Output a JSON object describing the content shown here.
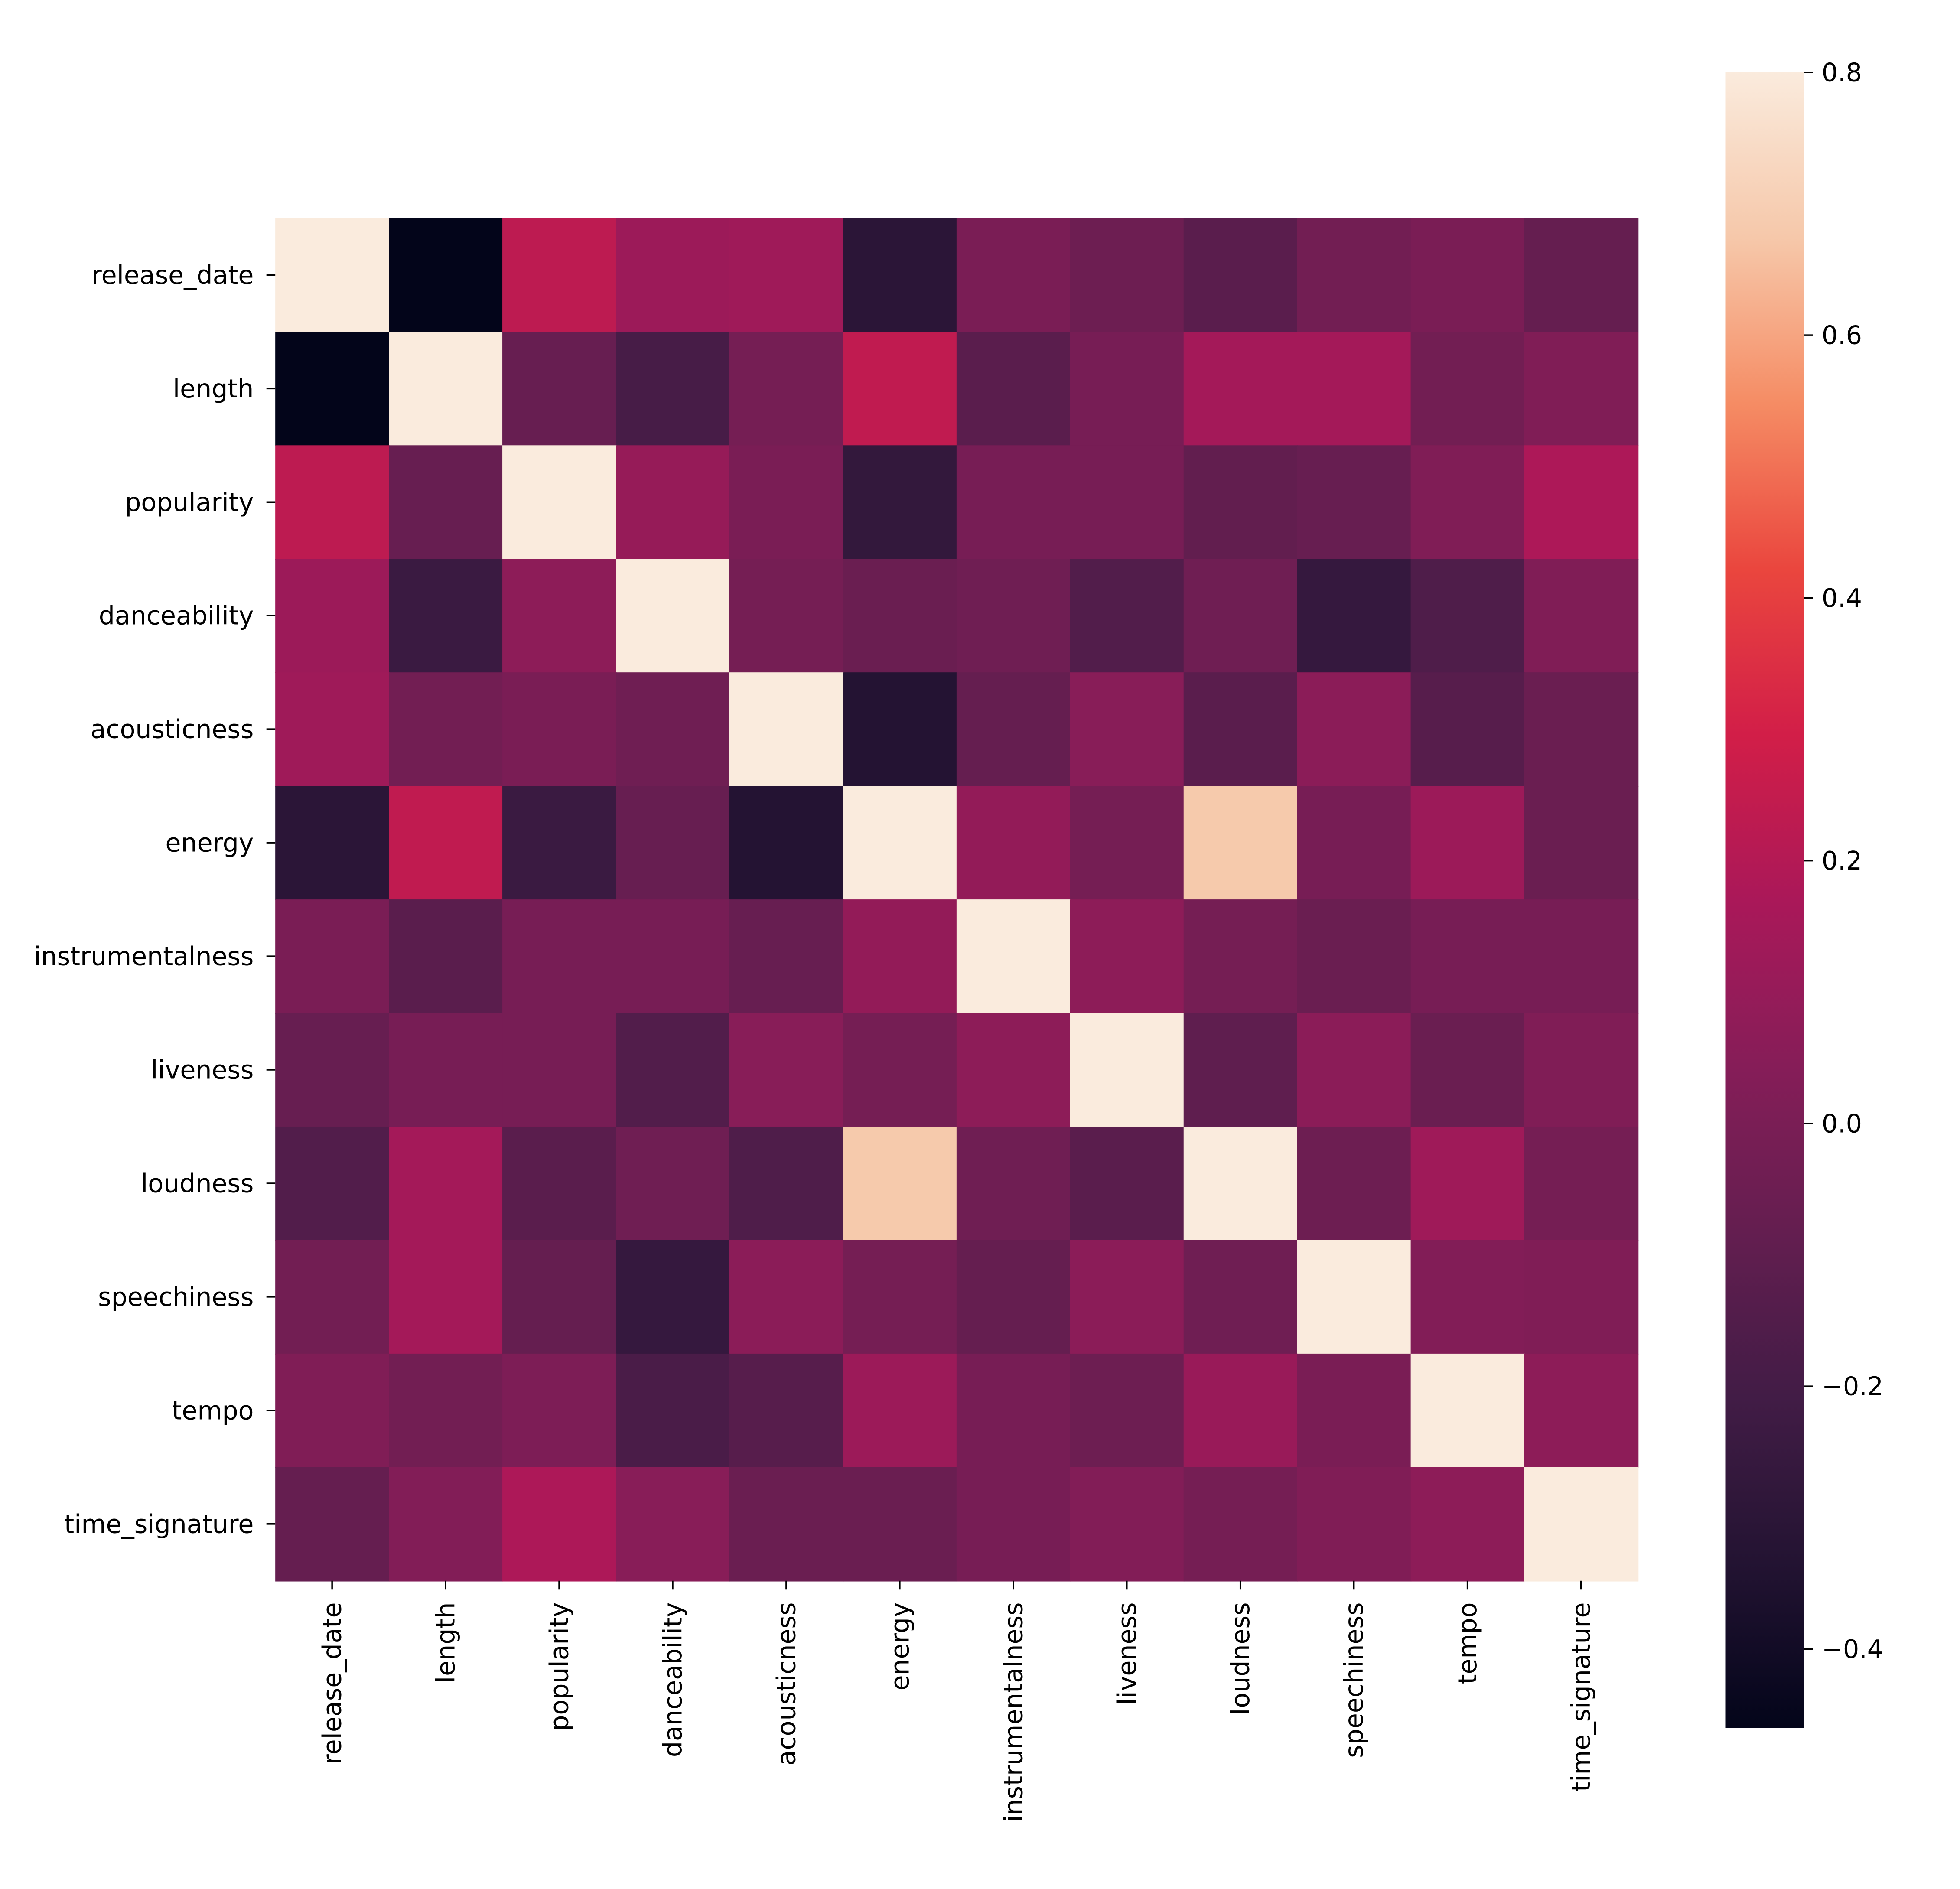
{
  "chart_data": {
    "type": "heatmap",
    "title": "",
    "xlabel": "",
    "ylabel": "",
    "colormap": "rocket",
    "vmin": -0.46,
    "vmax": 0.8,
    "labels": [
      "release_date",
      "length",
      "popularity",
      "danceability",
      "acousticness",
      "energy",
      "instrumentalness",
      "liveness",
      "loudness",
      "speechiness",
      "tempo",
      "time_signature"
    ],
    "values": [
      [
        1.0,
        -0.46,
        0.23,
        0.12,
        0.13,
        -0.3,
        0.0,
        -0.05,
        -0.12,
        -0.03,
        0.0,
        -0.08
      ],
      [
        -0.46,
        1.0,
        -0.07,
        -0.19,
        -0.02,
        0.24,
        -0.12,
        -0.01,
        0.15,
        0.15,
        -0.03,
        0.02
      ],
      [
        0.23,
        -0.07,
        1.0,
        0.1,
        0.0,
        -0.27,
        -0.01,
        -0.01,
        -0.09,
        -0.07,
        0.02,
        0.18
      ],
      [
        0.12,
        -0.24,
        0.07,
        1.0,
        -0.02,
        -0.06,
        -0.04,
        -0.15,
        -0.04,
        -0.26,
        -0.16,
        0.02
      ],
      [
        0.13,
        -0.03,
        0.0,
        -0.04,
        1.0,
        -0.33,
        -0.08,
        0.05,
        -0.12,
        0.06,
        -0.13,
        -0.06
      ],
      [
        -0.3,
        0.24,
        -0.24,
        -0.07,
        -0.33,
        1.0,
        0.09,
        -0.02,
        0.68,
        -0.01,
        0.12,
        -0.06
      ],
      [
        0.0,
        -0.12,
        -0.01,
        -0.01,
        -0.07,
        0.09,
        1.0,
        0.07,
        -0.02,
        -0.06,
        -0.01,
        -0.01
      ],
      [
        -0.07,
        -0.01,
        -0.01,
        -0.15,
        0.05,
        -0.02,
        0.07,
        1.0,
        -0.1,
        0.06,
        -0.06,
        0.02
      ],
      [
        -0.15,
        0.15,
        -0.12,
        -0.04,
        -0.16,
        0.68,
        -0.04,
        -0.12,
        1.0,
        -0.05,
        0.13,
        -0.02
      ],
      [
        -0.03,
        0.15,
        -0.08,
        -0.26,
        0.06,
        -0.02,
        -0.08,
        0.06,
        -0.04,
        1.0,
        0.03,
        0.02
      ],
      [
        0.02,
        -0.03,
        0.01,
        -0.18,
        -0.13,
        0.12,
        -0.01,
        -0.05,
        0.11,
        0.0,
        1.0,
        0.07
      ],
      [
        -0.08,
        0.03,
        0.18,
        0.05,
        -0.06,
        -0.06,
        -0.01,
        0.03,
        -0.02,
        0.02,
        0.07,
        1.0
      ]
    ],
    "colorbar_ticks": [
      0.8,
      0.6,
      0.4,
      0.2,
      0.0,
      -0.2,
      -0.4
    ],
    "colorbar_tick_labels": [
      "0.8",
      "0.6",
      "0.4",
      "0.2",
      "0.0",
      "−0.2",
      "−0.4"
    ],
    "grid": false,
    "legend": "colorbar-right"
  }
}
